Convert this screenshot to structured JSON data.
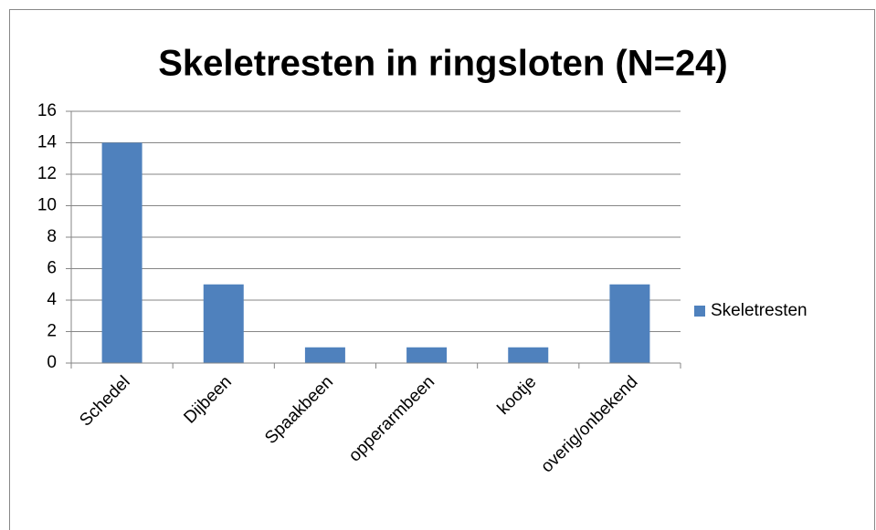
{
  "chart_data": {
    "type": "bar",
    "title": "Skeletresten in ringsloten (N=24)",
    "categories": [
      "Schedel",
      "Dijbeen",
      "Spaakbeen",
      "opperarmbeen",
      "kootje",
      "overig/onbekend"
    ],
    "series": [
      {
        "name": "Skeletresten",
        "color": "#4f81bd",
        "values": [
          14,
          5,
          1,
          1,
          1,
          5
        ]
      }
    ],
    "ylim": [
      0,
      16
    ],
    "yticks": [
      0,
      2,
      4,
      6,
      8,
      10,
      12,
      14,
      16
    ],
    "grid": true,
    "legend": "right"
  }
}
